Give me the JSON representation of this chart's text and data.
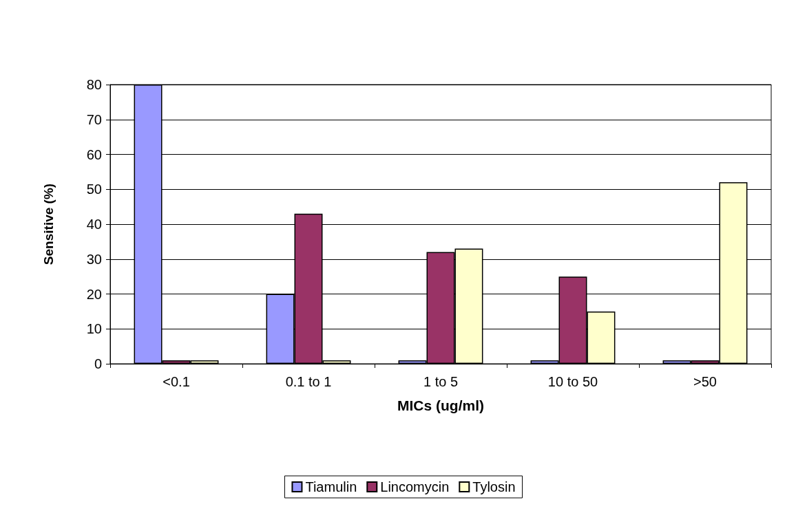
{
  "chart_data": {
    "type": "bar",
    "xlabel": "MICs (ug/ml)",
    "ylabel": "Sensitive (%)",
    "categories": [
      "<0.1",
      "0.1 to 1",
      "1 to 5",
      "10 to 50",
      ">50"
    ],
    "series": [
      {
        "name": "Tiamulin",
        "color": "#9999ff",
        "values": [
          80,
          20,
          1,
          1,
          1
        ]
      },
      {
        "name": "Lincomycin",
        "color": "#993366",
        "values": [
          1,
          43,
          32,
          25,
          1
        ]
      },
      {
        "name": "Tylosin",
        "color": "#ffffcc",
        "values": [
          1,
          1,
          33,
          15,
          52
        ]
      }
    ],
    "ylim": [
      0,
      80
    ],
    "yticks": [
      0,
      10,
      20,
      30,
      40,
      50,
      60,
      70,
      80
    ],
    "grid": "y",
    "legend": "bottom"
  }
}
